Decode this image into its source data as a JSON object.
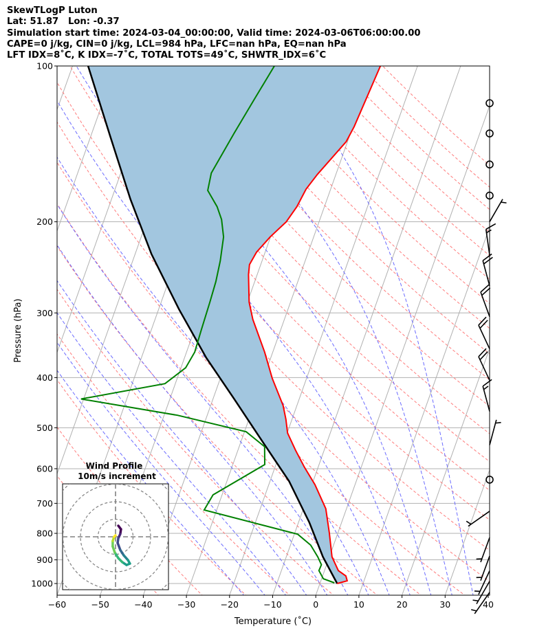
{
  "header": {
    "line1": "SkewTLogP Luton",
    "line2": "Lat: 51.87   Lon: -0.37",
    "line3": "Simulation start time: 2024-03-04_00:00:00, Valid time: 2024-03-06T06:00:00.00",
    "line4": "CAPE=0 j/kg, CIN=0 j/kg, LCL=984 hPa, LFC=nan hPa, EQ=nan hPa",
    "line5": "LFT IDX=8˚C, K IDX=-7˚C, TOTAL TOTS=49˚C, SHWTR_IDX=6˚C"
  },
  "chart_data": {
    "type": "line",
    "subtype": "skew-T log-P",
    "xlabel": "Temperature (˚C)",
    "ylabel": "Pressure (hPa)",
    "xlim": [
      -60,
      40
    ],
    "ylim": [
      1050,
      100
    ],
    "xticks": [
      "−60",
      "−50",
      "−40",
      "−30",
      "−20",
      "−10",
      "0",
      "10",
      "20",
      "30",
      "40"
    ],
    "xtick_values": [
      -60,
      -50,
      -40,
      -30,
      -20,
      -10,
      0,
      10,
      20,
      30,
      40
    ],
    "yticks": [
      100,
      200,
      300,
      400,
      500,
      600,
      700,
      800,
      900,
      1000
    ],
    "colors": {
      "temperature": "#ff0000",
      "dewpoint": "#008000",
      "parcel": "#000000",
      "cape_fill": "#a2c6df",
      "isotherm": "#b0b0b0",
      "dry_adiabat": "#ff6b6b",
      "moist_adiabat": "#6a6aff"
    },
    "temperature": {
      "p": [
        100,
        131,
        140,
        162,
        173,
        187,
        200,
        214,
        229,
        242,
        253,
        286,
        309,
        357,
        401,
        453,
        482,
        512,
        553,
        597,
        644,
        717,
        798,
        888,
        944,
        967,
        988,
        1000
      ],
      "t": [
        -28.6,
        -29.7,
        -30.3,
        -34.3,
        -35.7,
        -36.4,
        -37.6,
        -40.1,
        -42.0,
        -42.6,
        -42.0,
        -39.6,
        -37.3,
        -31.9,
        -28.0,
        -23.2,
        -21.4,
        -19.9,
        -16.6,
        -13.1,
        -9.3,
        -4.8,
        -2.0,
        0.6,
        3.2,
        5.4,
        6.1,
        4.0
      ]
    },
    "dewpoint": {
      "p": [
        100,
        116,
        135,
        161,
        174,
        187,
        198,
        214,
        238,
        261,
        286,
        324,
        357,
        383,
        411,
        440,
        473,
        509,
        544,
        589,
        674,
        721,
        803,
        843,
        888,
        920,
        944,
        979,
        997
      ],
      "t": [
        -53.2,
        -55.1,
        -57.0,
        -59.0,
        -58.4,
        -54.9,
        -52.8,
        -50.9,
        -49.7,
        -49.0,
        -48.7,
        -48.4,
        -48.1,
        -48.9,
        -52.4,
        -70.6,
        -46.9,
        -29.6,
        -24.1,
        -22.6,
        -32.1,
        -32.9,
        -9.2,
        -5.3,
        -2.7,
        -1.2,
        -1.3,
        0.4,
        3.3
      ]
    },
    "parcel": {
      "p": [
        100,
        137,
        181,
        231,
        295,
        366,
        439,
        528,
        634,
        762,
        888,
        1000
      ],
      "t": [
        -96.4,
        -85.4,
        -75.6,
        -66.2,
        -55.3,
        -45.0,
        -35.2,
        -25.4,
        -15.6,
        -7.5,
        -1.5,
        4.0
      ]
    },
    "isotherms": [
      -160,
      -150,
      -140,
      -130,
      -120,
      -110,
      -100,
      -90,
      -80,
      -70,
      -60,
      -50,
      -40,
      -30,
      -20,
      -10,
      0,
      10,
      20,
      30,
      40
    ],
    "dry_adiabats_theta_c": [
      -40,
      -30,
      -20,
      -10,
      0,
      10,
      20,
      30,
      40,
      50,
      60,
      70,
      80,
      90,
      100,
      110,
      120,
      130,
      140,
      150,
      160,
      170,
      180,
      190,
      200
    ],
    "moist_adiabats_t0_c": [
      -20,
      -15,
      -10,
      -5,
      0,
      5,
      10,
      15,
      20,
      25,
      30,
      35
    ],
    "wind_barbs": [
      {
        "p": 118,
        "speed_kt": 0,
        "dir": 0
      },
      {
        "p": 135,
        "speed_kt": 0,
        "dir": 0
      },
      {
        "p": 155,
        "speed_kt": 0,
        "dir": 0
      },
      {
        "p": 178,
        "speed_kt": 0,
        "dir": 0
      },
      {
        "p": 200,
        "speed_kt": 5,
        "dir": 30
      },
      {
        "p": 232,
        "speed_kt": 15,
        "dir": 352
      },
      {
        "p": 266,
        "speed_kt": 20,
        "dir": 345
      },
      {
        "p": 305,
        "speed_kt": 20,
        "dir": 340
      },
      {
        "p": 352,
        "speed_kt": 20,
        "dir": 335
      },
      {
        "p": 405,
        "speed_kt": 20,
        "dir": 335
      },
      {
        "p": 465,
        "speed_kt": 15,
        "dir": 345
      },
      {
        "p": 540,
        "speed_kt": 5,
        "dir": 15
      },
      {
        "p": 630,
        "speed_kt": 0,
        "dir": 0
      },
      {
        "p": 725,
        "speed_kt": 5,
        "dir": 235
      },
      {
        "p": 815,
        "speed_kt": 5,
        "dir": 200
      },
      {
        "p": 885,
        "speed_kt": 5,
        "dir": 200
      },
      {
        "p": 945,
        "speed_kt": 5,
        "dir": 205
      },
      {
        "p": 990,
        "speed_kt": 5,
        "dir": 210
      },
      {
        "p": 1040,
        "speed_kt": 5,
        "dir": 215
      }
    ],
    "hodograph": {
      "title": "Wind Profile",
      "subtitle": "10m/s increment",
      "rings_ms": [
        10,
        20,
        30
      ],
      "u": [
        1.6,
        3.1,
        2.7,
        1.6,
        1.2,
        2.7,
        4.7,
        7.1,
        8.2,
        6.3,
        3.9,
        1.6,
        -0.4,
        -1.6,
        -1.6,
        -0.8,
        0
      ],
      "v": [
        6.3,
        4.3,
        1.6,
        -0.8,
        -3.5,
        -7.5,
        -10.6,
        -13.3,
        -15.3,
        -16.1,
        -14.5,
        -12.2,
        -9.0,
        -5.5,
        -2.4,
        0,
        0.8
      ]
    }
  }
}
